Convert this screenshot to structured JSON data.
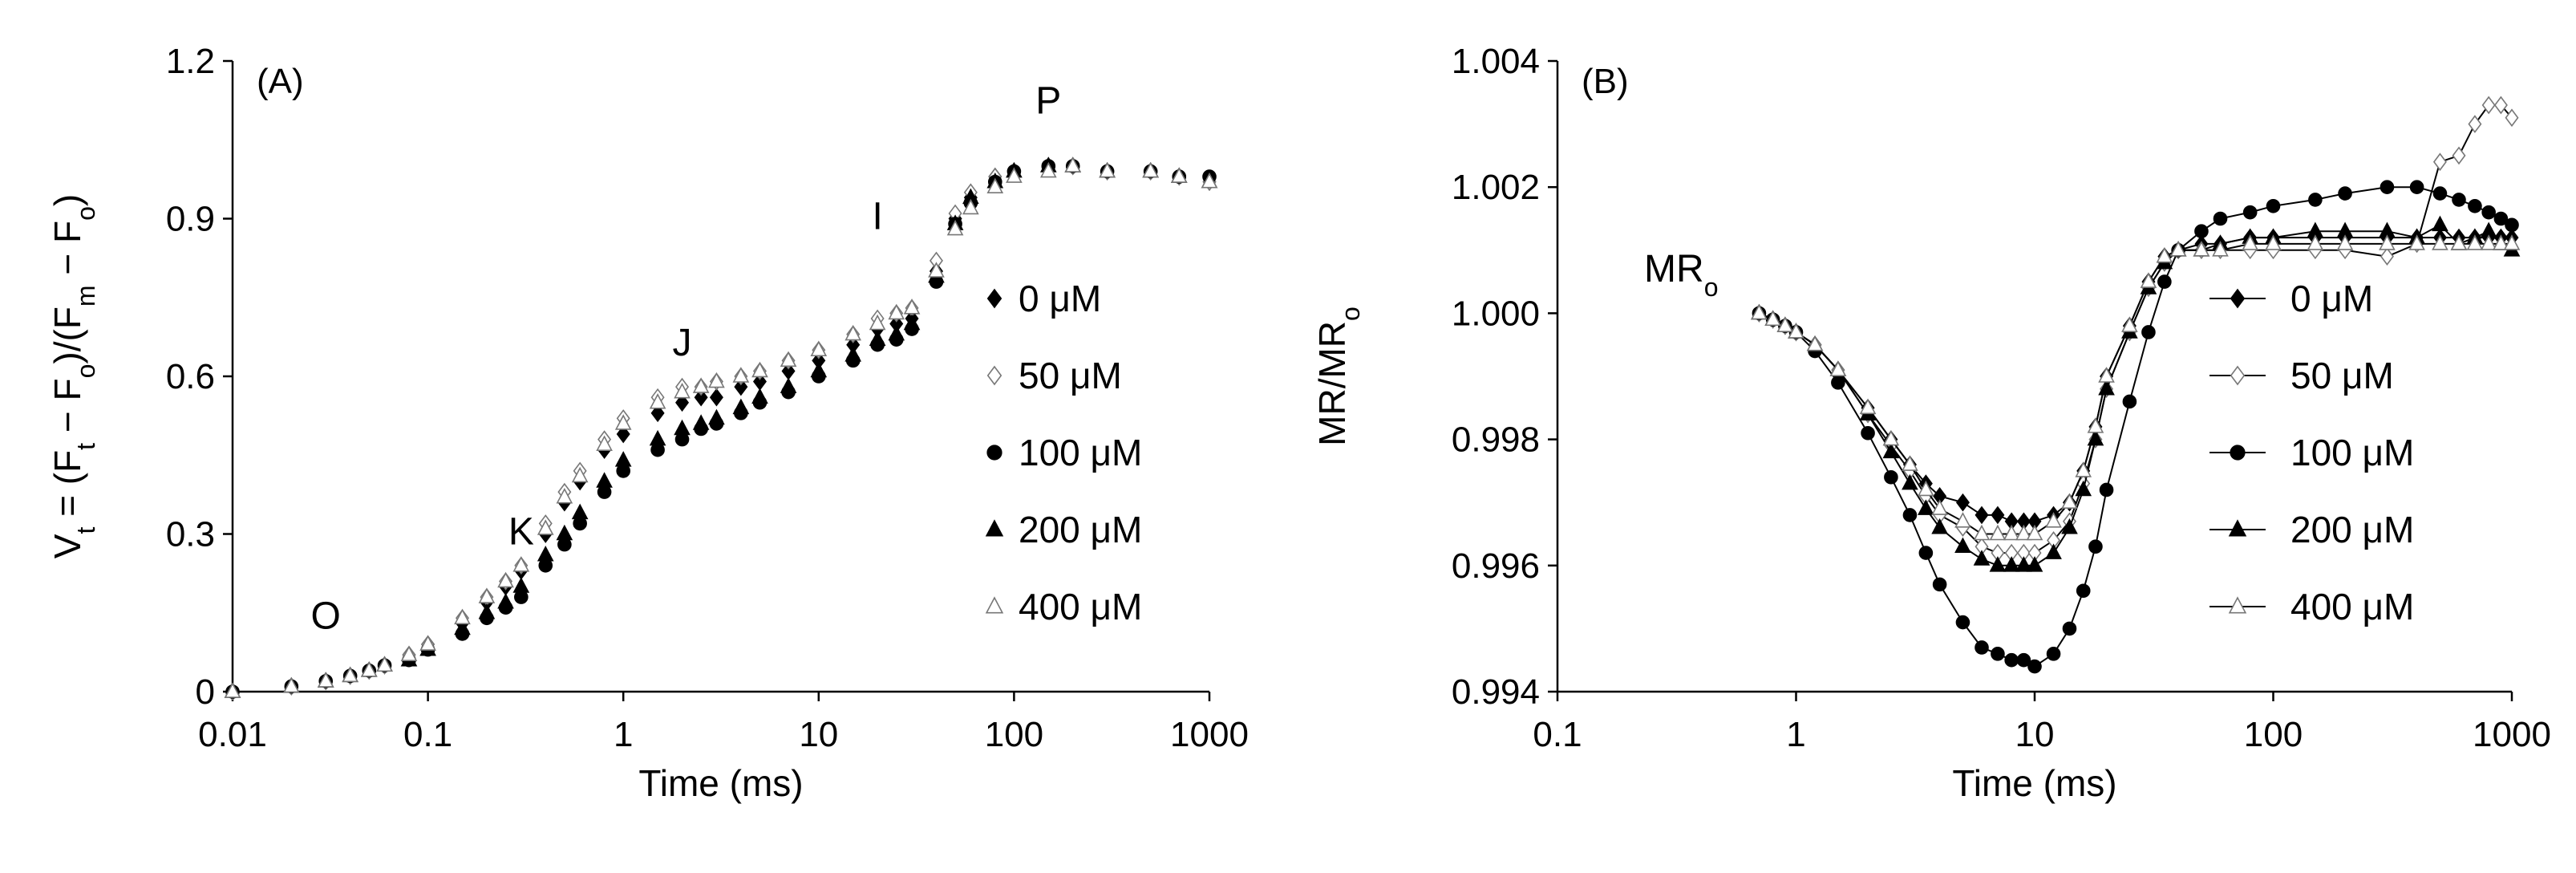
{
  "chart_data": [
    {
      "type": "scatter",
      "panel_label": "(A)",
      "xlabel": "Time (ms)",
      "ylabel_parts": [
        "V",
        "t",
        " = (F",
        "t",
        " − F",
        "o",
        ")/(F",
        "m",
        " − F",
        "o",
        ")"
      ],
      "xscale": "log",
      "xlim": [
        0.01,
        1000
      ],
      "ylim": [
        0,
        1.2
      ],
      "x_ticks": [
        0.01,
        0.1,
        1,
        10,
        100,
        1000
      ],
      "x_tick_labels": [
        "0.01",
        "0.1",
        "1",
        "10",
        "100",
        "1000"
      ],
      "y_ticks": [
        0,
        0.3,
        0.6,
        0.9,
        1.2
      ],
      "y_tick_labels": [
        "0",
        "0.3",
        "0.6",
        "0.9",
        "1.2"
      ],
      "legend_position": "right",
      "annotations": [
        {
          "text": "O",
          "x": 0.03,
          "y": 0.12
        },
        {
          "text": "K",
          "x": 0.3,
          "y": 0.28
        },
        {
          "text": "J",
          "x": 2.0,
          "y": 0.64
        },
        {
          "text": "I",
          "x": 20,
          "y": 0.88
        },
        {
          "text": "P",
          "x": 150,
          "y": 1.1
        }
      ],
      "series": [
        {
          "name": "0 μM",
          "marker": "diamond-filled",
          "x": [
            0.01,
            0.02,
            0.03,
            0.04,
            0.05,
            0.06,
            0.08,
            0.1,
            0.15,
            0.2,
            0.25,
            0.3,
            0.4,
            0.5,
            0.6,
            0.8,
            1,
            1.5,
            2,
            2.5,
            3,
            4,
            5,
            7,
            10,
            15,
            20,
            25,
            30,
            40,
            50,
            60,
            80,
            100,
            150,
            200,
            300,
            500,
            700,
            1000
          ],
          "y": [
            0,
            0.01,
            0.02,
            0.03,
            0.04,
            0.05,
            0.07,
            0.09,
            0.13,
            0.17,
            0.2,
            0.23,
            0.3,
            0.36,
            0.4,
            0.46,
            0.49,
            0.53,
            0.55,
            0.56,
            0.56,
            0.58,
            0.59,
            0.61,
            0.63,
            0.66,
            0.69,
            0.7,
            0.71,
            0.8,
            0.9,
            0.94,
            0.98,
            0.99,
            1.0,
            1.0,
            0.99,
            0.99,
            0.98,
            0.97
          ]
        },
        {
          "name": "50 μM",
          "marker": "diamond-open",
          "x": [
            0.01,
            0.02,
            0.03,
            0.04,
            0.05,
            0.06,
            0.08,
            0.1,
            0.15,
            0.2,
            0.25,
            0.3,
            0.4,
            0.5,
            0.6,
            0.8,
            1,
            1.5,
            2,
            2.5,
            3,
            4,
            5,
            7,
            10,
            15,
            20,
            25,
            30,
            40,
            50,
            60,
            80,
            100,
            150,
            200,
            300,
            500,
            700,
            1000
          ],
          "y": [
            0,
            0.01,
            0.02,
            0.03,
            0.04,
            0.05,
            0.07,
            0.09,
            0.14,
            0.18,
            0.21,
            0.24,
            0.32,
            0.38,
            0.42,
            0.48,
            0.52,
            0.56,
            0.58,
            0.58,
            0.59,
            0.6,
            0.61,
            0.63,
            0.65,
            0.68,
            0.71,
            0.72,
            0.73,
            0.82,
            0.91,
            0.95,
            0.98,
            0.99,
            1.0,
            1.0,
            0.99,
            0.99,
            0.98,
            0.97
          ]
        },
        {
          "name": "100 μM",
          "marker": "circle-filled",
          "x": [
            0.01,
            0.02,
            0.03,
            0.04,
            0.05,
            0.06,
            0.08,
            0.1,
            0.15,
            0.2,
            0.25,
            0.3,
            0.4,
            0.5,
            0.6,
            0.8,
            1,
            1.5,
            2,
            2.5,
            3,
            4,
            5,
            7,
            10,
            15,
            20,
            25,
            30,
            40,
            50,
            60,
            80,
            100,
            150,
            200,
            300,
            500,
            700,
            1000
          ],
          "y": [
            0,
            0.01,
            0.02,
            0.03,
            0.04,
            0.05,
            0.06,
            0.08,
            0.11,
            0.14,
            0.16,
            0.18,
            0.24,
            0.28,
            0.32,
            0.38,
            0.42,
            0.46,
            0.48,
            0.5,
            0.51,
            0.53,
            0.55,
            0.57,
            0.6,
            0.63,
            0.66,
            0.67,
            0.69,
            0.78,
            0.89,
            0.93,
            0.97,
            0.99,
            1.0,
            1.0,
            0.99,
            0.99,
            0.98,
            0.98
          ]
        },
        {
          "name": "200 μM",
          "marker": "triangle-filled",
          "x": [
            0.01,
            0.02,
            0.03,
            0.04,
            0.05,
            0.06,
            0.08,
            0.1,
            0.15,
            0.2,
            0.25,
            0.3,
            0.4,
            0.5,
            0.6,
            0.8,
            1,
            1.5,
            2,
            2.5,
            3,
            4,
            5,
            7,
            10,
            15,
            20,
            25,
            30,
            40,
            50,
            60,
            80,
            100,
            150,
            200,
            300,
            500,
            700,
            1000
          ],
          "y": [
            0,
            0.01,
            0.02,
            0.03,
            0.04,
            0.05,
            0.06,
            0.08,
            0.12,
            0.15,
            0.17,
            0.2,
            0.26,
            0.3,
            0.34,
            0.4,
            0.44,
            0.48,
            0.5,
            0.51,
            0.52,
            0.54,
            0.56,
            0.58,
            0.61,
            0.64,
            0.67,
            0.68,
            0.7,
            0.79,
            0.89,
            0.94,
            0.97,
            0.99,
            1.0,
            1.0,
            0.99,
            0.99,
            0.98,
            0.97
          ]
        },
        {
          "name": "400 μM",
          "marker": "triangle-open",
          "x": [
            0.01,
            0.02,
            0.03,
            0.04,
            0.05,
            0.06,
            0.08,
            0.1,
            0.15,
            0.2,
            0.25,
            0.3,
            0.4,
            0.5,
            0.6,
            0.8,
            1,
            1.5,
            2,
            2.5,
            3,
            4,
            5,
            7,
            10,
            15,
            20,
            25,
            30,
            40,
            50,
            60,
            80,
            100,
            150,
            200,
            300,
            500,
            700,
            1000
          ],
          "y": [
            0,
            0.01,
            0.02,
            0.03,
            0.04,
            0.05,
            0.07,
            0.09,
            0.14,
            0.18,
            0.21,
            0.24,
            0.31,
            0.37,
            0.41,
            0.47,
            0.51,
            0.55,
            0.57,
            0.58,
            0.59,
            0.6,
            0.61,
            0.63,
            0.65,
            0.68,
            0.7,
            0.72,
            0.73,
            0.8,
            0.88,
            0.92,
            0.96,
            0.98,
            0.99,
            1.0,
            0.99,
            0.99,
            0.98,
            0.97
          ]
        }
      ]
    },
    {
      "type": "line",
      "panel_label": "(B)",
      "xlabel": "Time (ms)",
      "ylabel_parts": [
        "MR/MR",
        "o"
      ],
      "xscale": "log",
      "xlim": [
        0.1,
        1000
      ],
      "ylim": [
        0.994,
        1.004
      ],
      "x_ticks": [
        0.1,
        1,
        10,
        100,
        1000
      ],
      "x_tick_labels": [
        "0.1",
        "1",
        "10",
        "100",
        "1000"
      ],
      "y_ticks": [
        0.994,
        0.996,
        0.998,
        1.0,
        1.002,
        1.004
      ],
      "y_tick_labels": [
        "0.994",
        "0.996",
        "0.998",
        "1.000",
        "1.002",
        "1.004"
      ],
      "legend_position": "right",
      "annotations": [
        {
          "text_parts": [
            "MR",
            "o"
          ],
          "x": 0.33,
          "y": 1.0005
        }
      ],
      "series": [
        {
          "name": "0 μM",
          "marker": "diamond-filled",
          "x": [
            0.7,
            0.8,
            0.9,
            1,
            1.2,
            1.5,
            2,
            2.5,
            3,
            3.5,
            4,
            5,
            6,
            7,
            8,
            9,
            10,
            12,
            14,
            16,
            18,
            20,
            25,
            30,
            35,
            40,
            50,
            60,
            80,
            100,
            150,
            200,
            300,
            400,
            500,
            600,
            700,
            800,
            900,
            1000
          ],
          "y": [
            1.0,
            0.9999,
            0.9998,
            0.9997,
            0.9995,
            0.9991,
            0.9985,
            0.998,
            0.9976,
            0.9973,
            0.9971,
            0.997,
            0.9968,
            0.9968,
            0.9967,
            0.9967,
            0.9967,
            0.9968,
            0.997,
            0.9975,
            0.9982,
            0.999,
            0.9998,
            1.0005,
            1.0009,
            1.001,
            1.0011,
            1.0011,
            1.0012,
            1.0012,
            1.0012,
            1.0012,
            1.0012,
            1.0012,
            1.0012,
            1.0012,
            1.0012,
            1.0012,
            1.0012,
            1.0012
          ]
        },
        {
          "name": "50 μM",
          "marker": "diamond-open",
          "x": [
            0.7,
            0.8,
            0.9,
            1,
            1.2,
            1.5,
            2,
            2.5,
            3,
            3.5,
            4,
            5,
            6,
            7,
            8,
            9,
            10,
            12,
            14,
            16,
            18,
            20,
            25,
            30,
            35,
            40,
            50,
            60,
            80,
            100,
            150,
            200,
            300,
            400,
            500,
            600,
            700,
            800,
            900,
            1000
          ],
          "y": [
            1.0,
            0.9999,
            0.9998,
            0.9997,
            0.9995,
            0.9991,
            0.9984,
            0.9979,
            0.9975,
            0.9971,
            0.9968,
            0.9966,
            0.9963,
            0.9962,
            0.9962,
            0.9962,
            0.9962,
            0.9964,
            0.9967,
            0.9973,
            0.998,
            0.9988,
            0.9997,
            1.0004,
            1.0008,
            1.001,
            1.001,
            1.001,
            1.001,
            1.001,
            1.001,
            1.001,
            1.0009,
            1.0011,
            1.0024,
            1.0025,
            1.003,
            1.0033,
            1.0033,
            1.0031
          ]
        },
        {
          "name": "100 μM",
          "marker": "circle-filled",
          "x": [
            0.7,
            0.8,
            0.9,
            1,
            1.2,
            1.5,
            2,
            2.5,
            3,
            3.5,
            4,
            5,
            6,
            7,
            8,
            9,
            10,
            12,
            14,
            16,
            18,
            20,
            25,
            30,
            35,
            40,
            50,
            60,
            80,
            100,
            150,
            200,
            300,
            400,
            500,
            600,
            700,
            800,
            900,
            1000
          ],
          "y": [
            1.0,
            0.9999,
            0.9998,
            0.9997,
            0.9994,
            0.9989,
            0.9981,
            0.9974,
            0.9968,
            0.9962,
            0.9957,
            0.9951,
            0.9947,
            0.9946,
            0.9945,
            0.9945,
            0.9944,
            0.9946,
            0.995,
            0.9956,
            0.9963,
            0.9972,
            0.9986,
            0.9997,
            1.0005,
            1.001,
            1.0013,
            1.0015,
            1.0016,
            1.0017,
            1.0018,
            1.0019,
            1.002,
            1.002,
            1.0019,
            1.0018,
            1.0017,
            1.0016,
            1.0015,
            1.0014
          ]
        },
        {
          "name": "200 μM",
          "marker": "triangle-filled",
          "x": [
            0.7,
            0.8,
            0.9,
            1,
            1.2,
            1.5,
            2,
            2.5,
            3,
            3.5,
            4,
            5,
            6,
            7,
            8,
            9,
            10,
            12,
            14,
            16,
            18,
            20,
            25,
            30,
            35,
            40,
            50,
            60,
            80,
            100,
            150,
            200,
            300,
            400,
            500,
            600,
            700,
            800,
            900,
            1000
          ],
          "y": [
            1.0,
            0.9999,
            0.9998,
            0.9997,
            0.9995,
            0.9991,
            0.9984,
            0.9978,
            0.9973,
            0.9969,
            0.9966,
            0.9963,
            0.9961,
            0.996,
            0.996,
            0.996,
            0.996,
            0.9962,
            0.9966,
            0.9972,
            0.998,
            0.9988,
            0.9997,
            1.0004,
            1.0008,
            1.001,
            1.001,
            1.0011,
            1.0012,
            1.0012,
            1.0013,
            1.0013,
            1.0013,
            1.0012,
            1.0014,
            1.0011,
            1.0012,
            1.0013,
            1.0011,
            1.001
          ]
        },
        {
          "name": "400 μM",
          "marker": "triangle-open",
          "x": [
            0.7,
            0.8,
            0.9,
            1,
            1.2,
            1.5,
            2,
            2.5,
            3,
            3.5,
            4,
            5,
            6,
            7,
            8,
            9,
            10,
            12,
            14,
            16,
            18,
            20,
            25,
            30,
            35,
            40,
            50,
            60,
            80,
            100,
            150,
            200,
            300,
            400,
            500,
            600,
            700,
            800,
            900,
            1000
          ],
          "y": [
            1.0,
            0.9999,
            0.9998,
            0.9997,
            0.9995,
            0.9991,
            0.9985,
            0.998,
            0.9976,
            0.9972,
            0.9969,
            0.9967,
            0.9965,
            0.9965,
            0.9965,
            0.9965,
            0.9965,
            0.9967,
            0.997,
            0.9975,
            0.9982,
            0.999,
            0.9998,
            1.0005,
            1.0009,
            1.001,
            1.001,
            1.001,
            1.0011,
            1.0011,
            1.0011,
            1.0011,
            1.0011,
            1.0011,
            1.0011,
            1.0011,
            1.0011,
            1.0011,
            1.0011,
            1.0011
          ]
        }
      ]
    }
  ]
}
